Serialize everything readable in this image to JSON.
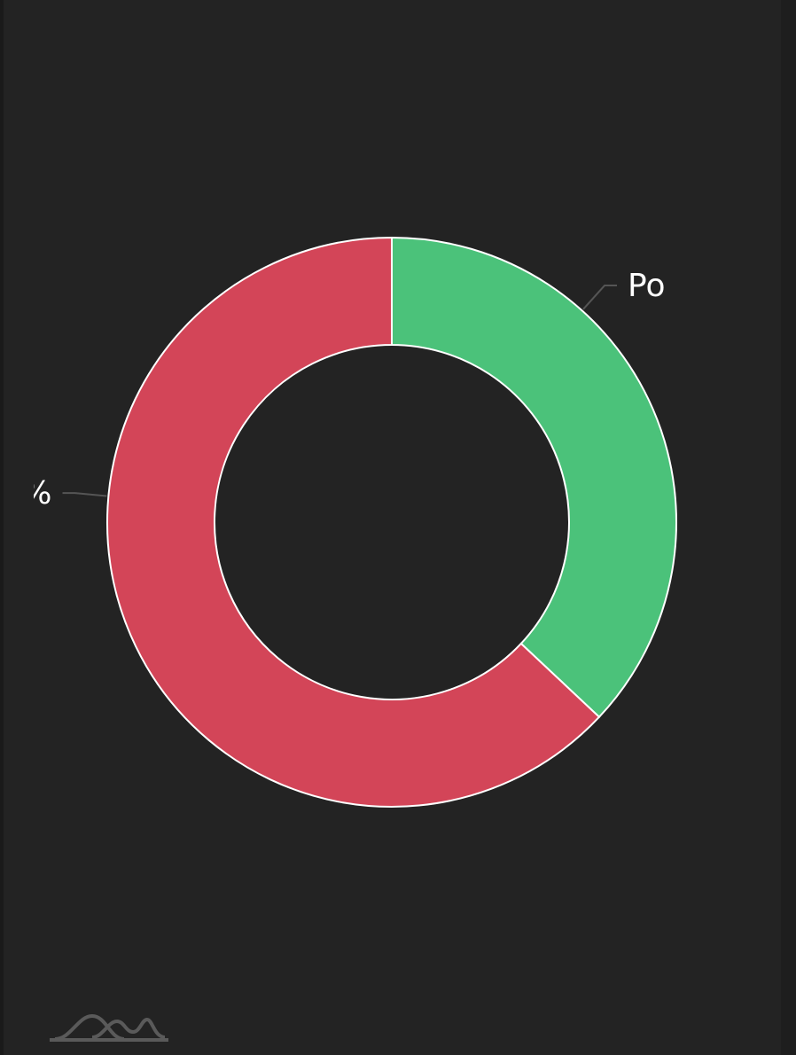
{
  "chart_data": {
    "type": "pie",
    "hole": true,
    "categories": [
      "Po",
      "%"
    ],
    "values": [
      37,
      63
    ],
    "colors": [
      "#4bc27a",
      "#d34558"
    ]
  }
}
